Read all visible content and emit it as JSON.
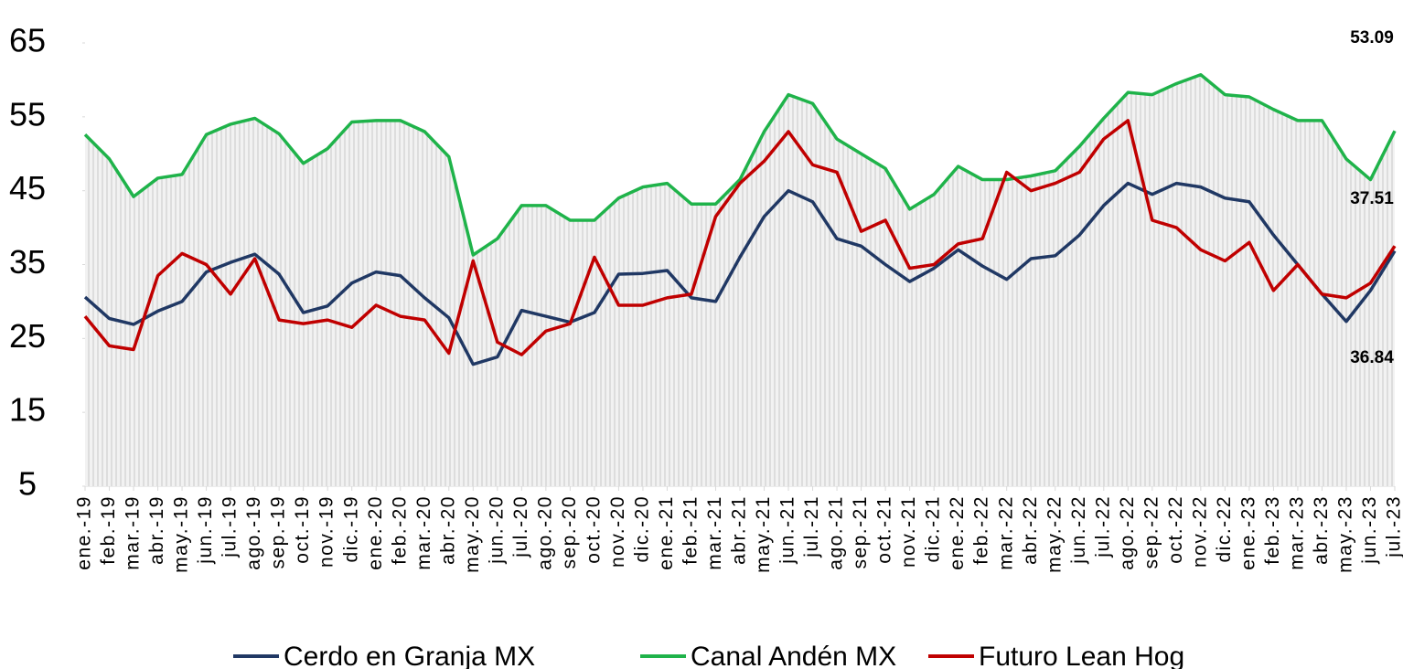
{
  "chart_data": {
    "type": "line",
    "categories": [
      "ene.-19",
      "feb.-19",
      "mar.-19",
      "abr.-19",
      "may.-19",
      "jun.-19",
      "jul.-19",
      "ago.-19",
      "sep.-19",
      "oct.-19",
      "nov.-19",
      "dic.-19",
      "ene.-20",
      "feb.-20",
      "mar.-20",
      "abr.-20",
      "may.-20",
      "jun.-20",
      "jul.-20",
      "ago.-20",
      "sep.-20",
      "oct.-20",
      "nov.-20",
      "dic.-20",
      "ene.-21",
      "feb.-21",
      "mar.-21",
      "abr.-21",
      "may.-21",
      "jun.-21",
      "jul.-21",
      "ago.-21",
      "sep.-21",
      "oct.-21",
      "nov.-21",
      "dic.-21",
      "ene.-22",
      "feb.-22",
      "mar.-22",
      "abr.-22",
      "may.-22",
      "jun.-22",
      "jul.-22",
      "ago.-22",
      "sep.-22",
      "oct.-22",
      "nov.-22",
      "dic.-22",
      "ene.-23",
      "feb.-23",
      "mar.-23",
      "abr.-23",
      "may.-23",
      "jun.-23",
      "jul.-23"
    ],
    "series": [
      {
        "name": "Cerdo en Granja MX",
        "color": "#203864",
        "values": [
          30.6,
          27.7,
          26.9,
          28.7,
          30,
          34,
          35.3,
          36.4,
          33.7,
          28.5,
          29.4,
          32.5,
          34,
          33.5,
          30.5,
          27.8,
          21.5,
          22.5,
          28.8,
          28,
          27.2,
          28.5,
          33.7,
          33.8,
          34.2,
          30.5,
          30,
          36,
          41.5,
          45,
          43.5,
          38.5,
          37.5,
          35,
          32.7,
          34.5,
          37,
          34.8,
          33,
          35.8,
          36.2,
          39,
          43,
          46,
          44.5,
          46,
          45.5,
          44,
          43.5,
          39,
          35,
          31,
          27.3,
          31.5,
          36.84
        ]
      },
      {
        "name": "Canal Andén MX",
        "color": "#1fb34a",
        "values": [
          52.6,
          49.3,
          44.2,
          46.7,
          47.2,
          52.6,
          54,
          54.8,
          52.7,
          48.7,
          50.7,
          54.3,
          54.5,
          54.5,
          53,
          49.6,
          36.3,
          38.5,
          43,
          43,
          41,
          41,
          44,
          45.5,
          46,
          43.2,
          43.2,
          46.5,
          53,
          58,
          56.8,
          52,
          50,
          48,
          42.5,
          44.5,
          48.3,
          46.5,
          46.5,
          47,
          47.7,
          51,
          54.8,
          58.3,
          58,
          59.5,
          60.7,
          58,
          57.7,
          56,
          54.5,
          54.5,
          49.3,
          46.5,
          53.09
        ]
      },
      {
        "name": "Futuro Lean Hog",
        "color": "#c00000",
        "values": [
          28,
          24,
          23.5,
          33.5,
          36.5,
          35,
          31,
          35.8,
          27.5,
          27,
          27.5,
          26.5,
          29.5,
          28,
          27.5,
          23,
          35.5,
          24.5,
          22.8,
          26,
          27,
          36,
          29.5,
          29.5,
          30.5,
          31,
          41.5,
          46,
          49,
          53,
          48.5,
          47.5,
          39.5,
          41,
          34.5,
          35,
          37.8,
          38.5,
          47.5,
          45,
          46,
          47.5,
          52,
          54.5,
          41,
          40,
          37,
          35.5,
          38,
          31.5,
          35,
          31,
          30.5,
          32.5,
          37.51
        ]
      }
    ],
    "ylim": [
      5,
      65
    ],
    "yticks": [
      5,
      15,
      25,
      35,
      45,
      55,
      65
    ]
  }
}
